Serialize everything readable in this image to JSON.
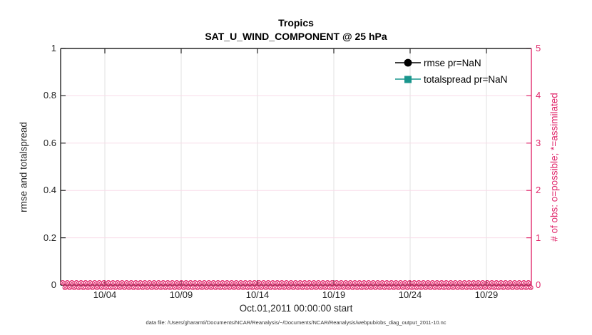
{
  "figure": {
    "window_title": "DART obs_diag evolution plot"
  },
  "chart_data": {
    "type": "line",
    "title": "Tropics",
    "subtitle": "SAT_U_WIND_COMPONENT @ 25 hPa",
    "xlabel": "Oct.01,2011 00:00:00 start",
    "x_tick_labels": [
      "10/04",
      "10/09",
      "10/14",
      "10/19",
      "10/24",
      "10/29"
    ],
    "x_range": [
      "10/01",
      "10/31"
    ],
    "grid": true,
    "legend_position": "top-right-inside",
    "left_axis": {
      "label": "rmse and totalspread",
      "tick_labels": [
        "0",
        "0.2",
        "0.4",
        "0.6",
        "0.8",
        "1"
      ],
      "range": [
        0,
        1
      ]
    },
    "right_axis": {
      "label": "# of obs: o=possible; *=assimilated",
      "tick_labels": [
        "0",
        "1",
        "2",
        "3",
        "4",
        "5"
      ],
      "range": [
        0,
        5
      ]
    },
    "series": [
      {
        "name": "rmse pr=NaN",
        "marker": "filled-circle",
        "color": "#000000",
        "values": null,
        "note": "pr=NaN, no curve drawn"
      },
      {
        "name": "totalspread pr=NaN",
        "marker": "filled-square",
        "color": "#1a968d",
        "values": null,
        "note": "pr=NaN, no curve drawn"
      },
      {
        "name": "# of obs possible (o)",
        "marker": "o",
        "color": "#e12a6d",
        "constant_value": 0,
        "note": "dense row of o markers at 0 along entire x-axis"
      },
      {
        "name": "# of obs assimilated (*)",
        "marker": "*",
        "color": "#e12a6d",
        "constant_value": 0,
        "note": "dense row of * markers at 0 along entire x-axis"
      }
    ]
  },
  "legend": {
    "items": [
      {
        "label": "rmse pr=NaN"
      },
      {
        "label": "totalspread pr=NaN"
      }
    ]
  },
  "footer": {
    "data_file": "data file: /Users/gharamti/Documents/NCAR/Reanalysis/~/Documents/NCAR/Reanalysis/webpub/obs_diag_output_2011-10.nc"
  },
  "colors": {
    "pink": "#e12a6d",
    "pink_grid": "#f8dbe8",
    "gray_grid": "#e2e2e2",
    "axis_dark": "#262626",
    "teal": "#1a968d"
  }
}
